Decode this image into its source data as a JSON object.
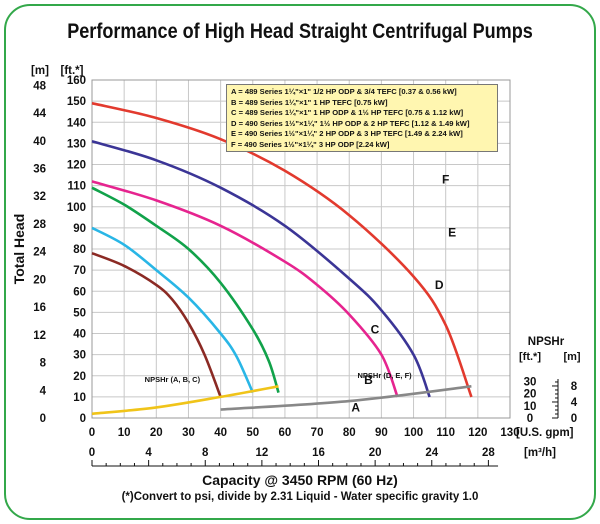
{
  "title": "Performance of High Head Straight Centrifugal Pumps",
  "footnote": "(*)Convert to psi, divide by 2.31    Liquid - Water specific gravity 1.0",
  "colors": {
    "frame": "#33a84a",
    "grid": "#c8c8c8",
    "legend_bg": "#fff6b0",
    "npshr_abc": "#f0c419",
    "npshr_def": "#888888"
  },
  "chart_data": {
    "type": "line",
    "title": "Performance of High Head Straight Centrifugal Pumps",
    "xlabel": "Capacity @ 3450 RPM (60 Hz)",
    "ylabel": "Total Head",
    "x_unit_gpm": "[U.S. gpm]",
    "x_unit_m3h": "[m³/h]",
    "y_unit_m": "[m]",
    "y_unit_ft": "[ft.*]",
    "xlim": [
      0,
      130
    ],
    "ylim_ft": [
      0,
      160
    ],
    "x_ticks_gpm": [
      "0",
      "10",
      "20",
      "30",
      "40",
      "50",
      "60",
      "70",
      "80",
      "90",
      "100",
      "110",
      "120",
      "130"
    ],
    "x_ticks_m3h": [
      "0",
      "4",
      "8",
      "12",
      "16",
      "20",
      "24",
      "28"
    ],
    "y_ticks_ft": [
      "0",
      "10",
      "20",
      "30",
      "40",
      "50",
      "60",
      "70",
      "80",
      "90",
      "100",
      "110",
      "120",
      "130",
      "140",
      "150",
      "160"
    ],
    "y_ticks_m": [
      "0",
      "4",
      "8",
      "12",
      "16",
      "20",
      "24",
      "28",
      "32",
      "36",
      "40",
      "44",
      "48"
    ],
    "grid": true,
    "legend_position": "top-right",
    "legend": [
      "A = 489 Series 1¼\"×1\" 1/2 HP ODP & 3/4 TEFC [0.37 & 0.56 kW]",
      "B = 489 Series 1¼\"×1\" 1 HP TEFC [0.75 kW]",
      "C = 489 Series 1¼\"×1\" 1 HP ODP & 1½ HP TEFC [0.75 & 1.12 kW]",
      "D = 490 Series 1½\"×1¼\" 1½ HP ODP & 2 HP TEFC [1.12 & 1.49 kW]",
      "E = 490 Series 1½\"×1¼\" 2 HP ODP & 3 HP TEFC [1.49 & 2.24 kW]",
      "F = 490 Series 1½\"×1¼\" 3 HP ODP [2.24 kW]"
    ],
    "series": [
      {
        "name": "A",
        "color": "#8b2a24",
        "x": [
          0,
          10,
          20,
          25,
          30,
          35,
          40
        ],
        "y": [
          78,
          72,
          63,
          56,
          45,
          30,
          10
        ]
      },
      {
        "name": "B",
        "color": "#29b6e6",
        "x": [
          0,
          10,
          20,
          30,
          40,
          45,
          50
        ],
        "y": [
          90,
          82,
          70,
          57,
          40,
          29,
          12
        ]
      },
      {
        "name": "C",
        "color": "#11a24a",
        "x": [
          0,
          10,
          20,
          30,
          40,
          50,
          55,
          58
        ],
        "y": [
          109,
          101,
          91,
          80,
          64,
          42,
          27,
          12
        ]
      },
      {
        "name": "D",
        "color": "#e6248f",
        "x": [
          0,
          20,
          40,
          60,
          70,
          80,
          90,
          95
        ],
        "y": [
          112,
          103,
          91,
          74,
          63,
          49,
          30,
          10
        ]
      },
      {
        "name": "E",
        "color": "#3b3596",
        "x": [
          0,
          20,
          40,
          60,
          80,
          90,
          100,
          105
        ],
        "y": [
          131,
          122,
          109,
          91,
          66,
          51,
          30,
          10
        ]
      },
      {
        "name": "F",
        "color": "#e23a2e",
        "x": [
          0,
          20,
          40,
          60,
          80,
          100,
          110,
          118
        ],
        "y": [
          149,
          142,
          132,
          117,
          96,
          67,
          44,
          10
        ]
      }
    ],
    "npshr_label": "NPSHr",
    "npshr_unit_ft": "[ft.*]",
    "npshr_unit_m": "[m]",
    "npshr_ticks_ft": [
      "0",
      "10",
      "20",
      "30"
    ],
    "npshr_ticks_m": [
      "0",
      "4",
      "8"
    ],
    "npshr_series": [
      {
        "name": "NPSHr (A, B, C)",
        "x": [
          0,
          20,
          40,
          58
        ],
        "y_ft": [
          2,
          5,
          10,
          15
        ]
      },
      {
        "name": "NPSHr (D, E, F)",
        "x": [
          40,
          80,
          118
        ],
        "y_ft": [
          4,
          8,
          15
        ]
      }
    ]
  }
}
